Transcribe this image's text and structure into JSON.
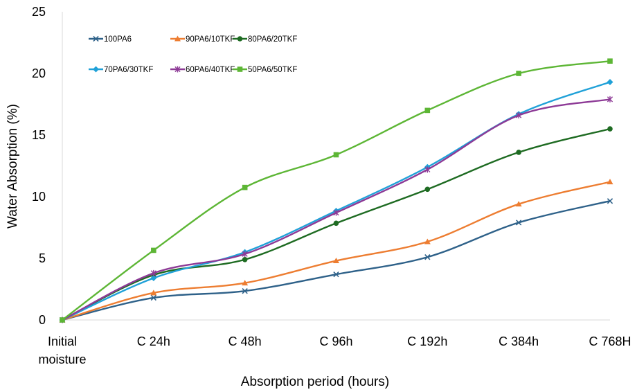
{
  "chart_data": {
    "type": "line",
    "title": "",
    "xlabel": "Absorption period (hours)",
    "ylabel": "Water Absorption (%)",
    "categories": [
      "Initial moisture",
      "C 24h",
      "C 48h",
      "C 96h",
      "C 192h",
      "C 384h",
      "C 768H"
    ],
    "ylim": [
      0,
      25
    ],
    "yticks": [
      "0",
      "5",
      "10",
      "15",
      "20",
      "25"
    ],
    "grid": false,
    "legend_position": "top-left",
    "series": [
      {
        "name": "100PA6",
        "color": "#2e6189",
        "marker": "x",
        "values": [
          0,
          1.8,
          2.35,
          3.7,
          5.1,
          7.9,
          9.65
        ]
      },
      {
        "name": "90PA6/10TKF",
        "color": "#ed7d31",
        "marker": "triangle",
        "values": [
          0,
          2.2,
          3.0,
          4.8,
          6.35,
          9.4,
          11.2
        ]
      },
      {
        "name": "80PA6/20TKF",
        "color": "#1e6b22",
        "marker": "circle",
        "values": [
          0,
          3.65,
          4.9,
          7.85,
          10.6,
          13.6,
          15.5
        ]
      },
      {
        "name": "70PA6/30TKF",
        "color": "#20a1d8",
        "marker": "diamond",
        "values": [
          0,
          3.4,
          5.5,
          8.85,
          12.4,
          16.7,
          19.3
        ]
      },
      {
        "name": "60PA6/40TKF",
        "color": "#8d3a96",
        "marker": "asterisk",
        "values": [
          0,
          3.8,
          5.35,
          8.7,
          12.2,
          16.6,
          17.9
        ]
      },
      {
        "name": "50PA6/50TKF",
        "color": "#5db635",
        "marker": "square",
        "values": [
          0,
          5.65,
          10.75,
          13.4,
          17.0,
          20.0,
          21.0
        ]
      }
    ]
  }
}
